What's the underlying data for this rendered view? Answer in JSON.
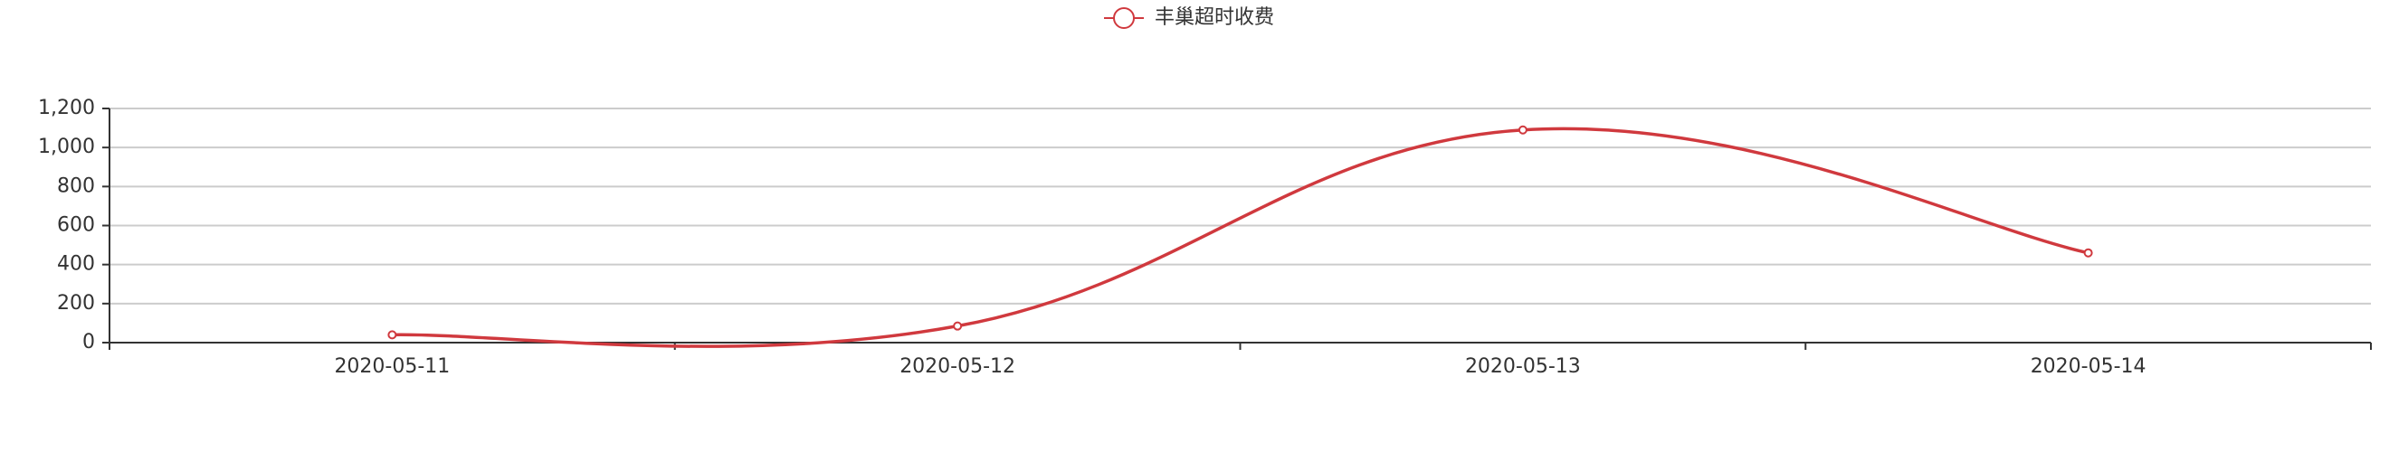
{
  "chart_data": {
    "type": "line",
    "smooth": true,
    "categories": [
      "2020-05-11",
      "2020-05-12",
      "2020-05-13",
      "2020-05-14"
    ],
    "series": [
      {
        "name": "丰巢超时收费",
        "color": "#d0393e",
        "values": [
          40,
          85,
          1090,
          460
        ]
      }
    ],
    "ylim": [
      0,
      1200
    ],
    "yticks": [
      0,
      200,
      400,
      600,
      800,
      {
        "value": 1000,
        "label": "1,000"
      },
      {
        "value": 1200,
        "label": "1,200"
      }
    ],
    "grid": true,
    "legend": "top"
  }
}
